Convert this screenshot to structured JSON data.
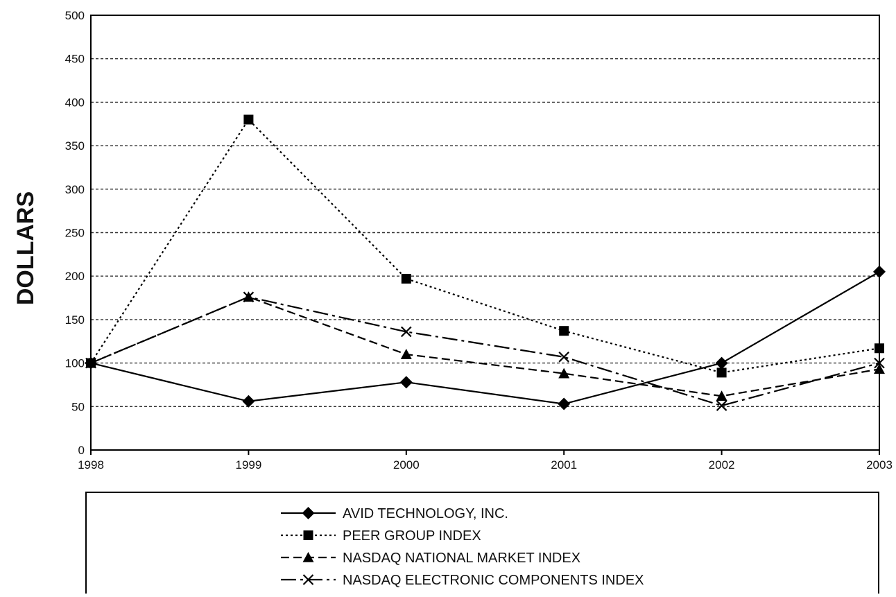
{
  "chart_data": {
    "type": "line",
    "ylabel": "DOLLARS",
    "xlabel": "",
    "x": [
      "1998",
      "1999",
      "2000",
      "2001",
      "2002",
      "2003"
    ],
    "ylim": [
      0,
      500
    ],
    "yticks": [
      "0",
      "50",
      "100",
      "150",
      "200",
      "250",
      "300",
      "350",
      "400",
      "450",
      "500"
    ],
    "grid": true,
    "legend_position": "bottom",
    "series": [
      {
        "name": "AVID TECHNOLOGY, INC.",
        "values": [
          100,
          56,
          78,
          53,
          100,
          205
        ],
        "marker": "diamond",
        "dash": "solid"
      },
      {
        "name": "PEER GROUP INDEX",
        "values": [
          100,
          380,
          197,
          137,
          89,
          117
        ],
        "marker": "square",
        "dash": "dotted"
      },
      {
        "name": "NASDAQ NATIONAL MARKET INDEX",
        "values": [
          100,
          176,
          110,
          88,
          62,
          93
        ],
        "marker": "triangle",
        "dash": "dashed"
      },
      {
        "name": "NASDAQ ELECTRONIC COMPONENTS INDEX",
        "values": [
          100,
          176,
          136,
          107,
          51,
          100
        ],
        "marker": "x",
        "dash": "dashdot"
      }
    ]
  }
}
